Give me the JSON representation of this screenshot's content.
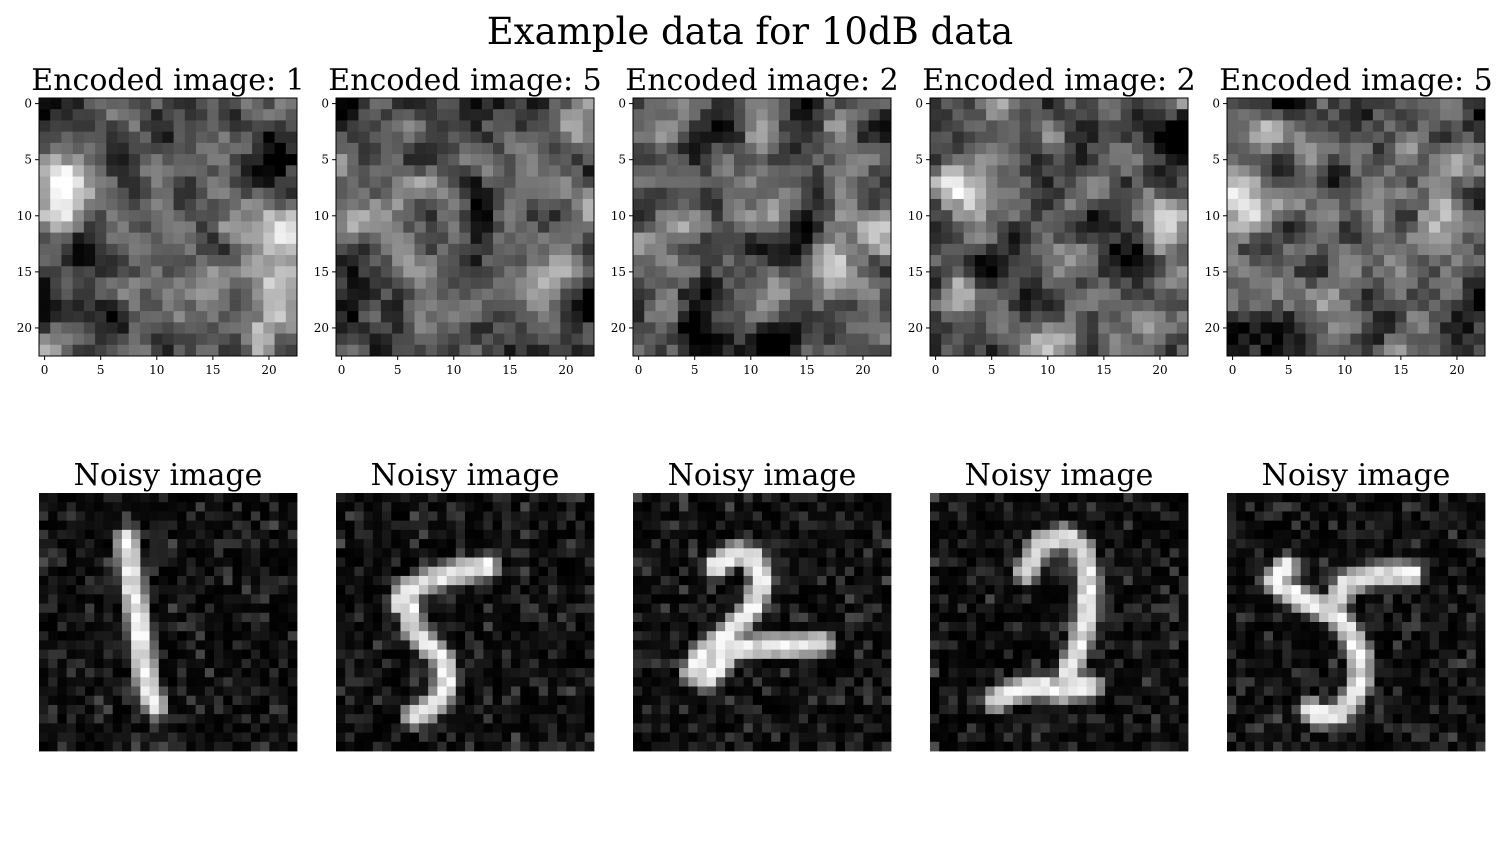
{
  "figure": {
    "suptitle": "Example data for 10dB data"
  },
  "chart_data": [
    {
      "type": "heatmap",
      "row": "encoded",
      "title": "Encoded image: 1",
      "grid_size": [
        23,
        23
      ],
      "xticks": [
        0,
        5,
        10,
        15,
        20
      ],
      "yticks": [
        0,
        5,
        10,
        15,
        20
      ],
      "xlim": [
        -0.5,
        22.5
      ],
      "ylim": [
        22.5,
        -0.5
      ],
      "colormap": "gray",
      "seed": 11,
      "bias": "encoded-1"
    },
    {
      "type": "heatmap",
      "row": "encoded",
      "title": "Encoded image: 5",
      "grid_size": [
        23,
        23
      ],
      "xticks": [
        0,
        5,
        10,
        15,
        20
      ],
      "yticks": [
        0,
        5,
        10,
        15,
        20
      ],
      "xlim": [
        -0.5,
        22.5
      ],
      "ylim": [
        22.5,
        -0.5
      ],
      "colormap": "gray",
      "seed": 53,
      "bias": "encoded-5"
    },
    {
      "type": "heatmap",
      "row": "encoded",
      "title": "Encoded image: 2",
      "grid_size": [
        23,
        23
      ],
      "xticks": [
        0,
        5,
        10,
        15,
        20
      ],
      "yticks": [
        0,
        5,
        10,
        15,
        20
      ],
      "xlim": [
        -0.5,
        22.5
      ],
      "ylim": [
        22.5,
        -0.5
      ],
      "colormap": "gray",
      "seed": 29,
      "bias": "encoded-2a"
    },
    {
      "type": "heatmap",
      "row": "encoded",
      "title": "Encoded image: 2",
      "grid_size": [
        23,
        23
      ],
      "xticks": [
        0,
        5,
        10,
        15,
        20
      ],
      "yticks": [
        0,
        5,
        10,
        15,
        20
      ],
      "xlim": [
        -0.5,
        22.5
      ],
      "ylim": [
        22.5,
        -0.5
      ],
      "colormap": "gray",
      "seed": 71,
      "bias": "encoded-2b"
    },
    {
      "type": "heatmap",
      "row": "encoded",
      "title": "Encoded image: 5",
      "grid_size": [
        23,
        23
      ],
      "xticks": [
        0,
        5,
        10,
        15,
        20
      ],
      "yticks": [
        0,
        5,
        10,
        15,
        20
      ],
      "xlim": [
        -0.5,
        22.5
      ],
      "ylim": [
        22.5,
        -0.5
      ],
      "colormap": "gray",
      "seed": 97,
      "bias": "encoded-5b"
    },
    {
      "type": "heatmap",
      "row": "noisy",
      "title": "Noisy image",
      "grid_size": [
        28,
        28
      ],
      "axes": "off",
      "colormap": "gray",
      "digit": "1",
      "seed": 5
    },
    {
      "type": "heatmap",
      "row": "noisy",
      "title": "Noisy image",
      "grid_size": [
        28,
        28
      ],
      "axes": "off",
      "colormap": "gray",
      "digit": "5",
      "seed": 17
    },
    {
      "type": "heatmap",
      "row": "noisy",
      "title": "Noisy image",
      "grid_size": [
        28,
        28
      ],
      "axes": "off",
      "colormap": "gray",
      "digit": "2",
      "seed": 41
    },
    {
      "type": "heatmap",
      "row": "noisy",
      "title": "Noisy image",
      "grid_size": [
        28,
        28
      ],
      "axes": "off",
      "colormap": "gray",
      "digit": "2",
      "seed": 63
    },
    {
      "type": "heatmap",
      "row": "noisy",
      "title": "Noisy image",
      "grid_size": [
        28,
        28
      ],
      "axes": "off",
      "colormap": "gray",
      "digit": "5",
      "seed": 89
    }
  ]
}
